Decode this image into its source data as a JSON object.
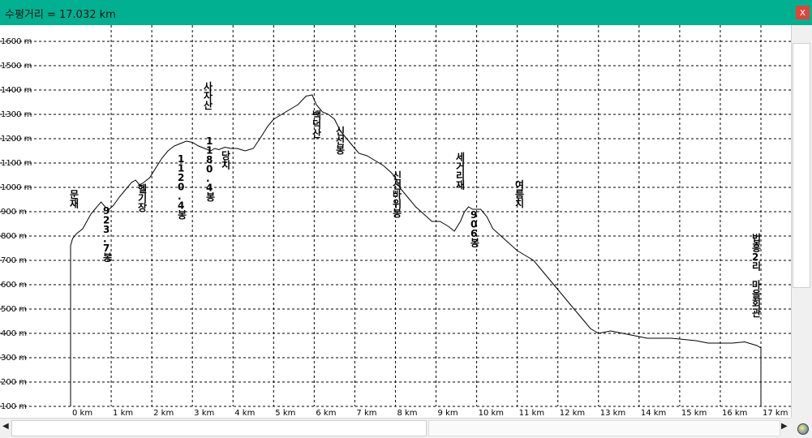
{
  "window": {
    "title": "수평거리 = 17.032 km",
    "close_label": "x"
  },
  "chart_data": {
    "type": "line",
    "xlabel": "",
    "ylabel": "",
    "xlim": [
      0,
      17
    ],
    "ylim": [
      100,
      1600
    ],
    "x_ticks": [
      "0 km",
      "1 km",
      "2 km",
      "3 km",
      "4 km",
      "5 km",
      "6 km",
      "7 km",
      "8 km",
      "9 km",
      "10 km",
      "11 km",
      "12 km",
      "13 km",
      "14 km",
      "15 km",
      "16 km",
      "17 km"
    ],
    "y_ticks": [
      "100 m",
      "200 m",
      "300 m",
      "400 m",
      "500 m",
      "600 m",
      "700 m",
      "800 m",
      "900 m",
      "1000 m",
      "1100 m",
      "1200 m",
      "1300 m",
      "1400 m",
      "1500 m",
      "1600 m"
    ],
    "grid": true,
    "series": [
      {
        "x": [
          0,
          0.05,
          0.15,
          0.3,
          0.4,
          0.5,
          0.6,
          0.75,
          0.85,
          0.95,
          1.05,
          1.2,
          1.35,
          1.5,
          1.6,
          1.7,
          1.8,
          1.95,
          2.1,
          2.25,
          2.4,
          2.55,
          2.7,
          2.85,
          3.0,
          3.15,
          3.3,
          3.45,
          3.55,
          3.65,
          3.8,
          3.95,
          4.1,
          4.3,
          4.5,
          4.7,
          4.85,
          5.0,
          5.2,
          5.4,
          5.6,
          5.8,
          5.95,
          6.05,
          6.2,
          6.35,
          6.5,
          6.65,
          6.8,
          6.95,
          7.1,
          7.3,
          7.5,
          7.7,
          7.9,
          8.0,
          8.1,
          8.3,
          8.5,
          8.7,
          8.9,
          9.1,
          9.3,
          9.45,
          9.6,
          9.7,
          9.8,
          9.9,
          10.0,
          10.1,
          10.25,
          10.4,
          10.6,
          10.8,
          11.0,
          11.2,
          11.4,
          11.6,
          11.8,
          12.0,
          12.2,
          12.4,
          12.6,
          12.8,
          13.0,
          13.3,
          13.6,
          13.9,
          14.2,
          14.5,
          14.8,
          15.1,
          15.4,
          15.7,
          16.0,
          16.3,
          16.6,
          16.9,
          17.0
        ],
        "y": [
          760,
          790,
          810,
          830,
          860,
          890,
          910,
          940,
          920,
          910,
          925,
          960,
          990,
          1020,
          1030,
          1010,
          1020,
          1040,
          1080,
          1120,
          1150,
          1170,
          1180,
          1190,
          1185,
          1170,
          1160,
          1150,
          1160,
          1155,
          1165,
          1160,
          1160,
          1150,
          1160,
          1210,
          1250,
          1280,
          1300,
          1320,
          1340,
          1375,
          1380,
          1340,
          1310,
          1300,
          1280,
          1230,
          1200,
          1170,
          1140,
          1130,
          1110,
          1090,
          1060,
          1040,
          1000,
          960,
          920,
          890,
          860,
          860,
          840,
          820,
          860,
          900,
          920,
          910,
          910,
          910,
          880,
          830,
          800,
          770,
          740,
          720,
          700,
          660,
          620,
          580,
          540,
          500,
          460,
          420,
          400,
          410,
          400,
          390,
          380,
          380,
          380,
          375,
          370,
          360,
          360,
          360,
          365,
          350,
          340
        ]
      }
    ],
    "annotations": [
      "문재",
      "923.7봉",
      "헬기장",
      "1120.4봉",
      "사자산",
      "1180.4봉",
      "당치",
      "백덕산",
      "신선봉",
      "신선바위봉",
      "세거리재",
      "906봉",
      "여름치",
      "법흥2리 마을회관"
    ]
  }
}
